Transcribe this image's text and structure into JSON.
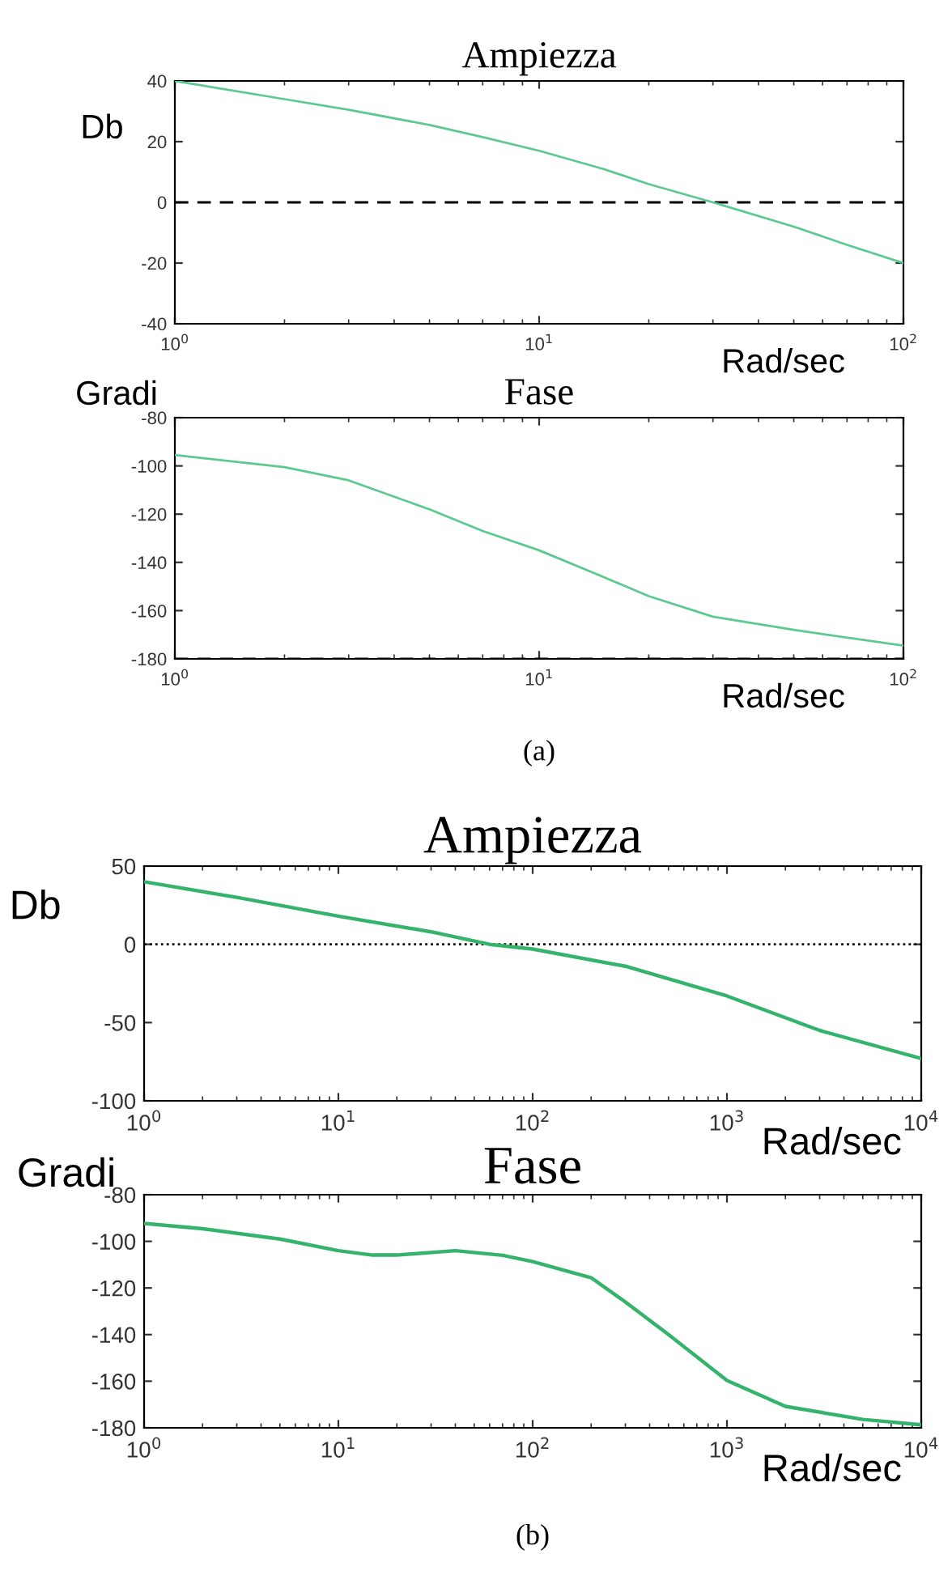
{
  "chart_data": [
    {
      "type": "line",
      "title": "Ampiezza",
      "ylabel": "Db",
      "xlabel": "Rad/sec",
      "log": "x",
      "grid": false,
      "legend": false,
      "line_style": "solid",
      "marker": "none",
      "x": [
        1,
        2,
        3,
        5,
        7,
        10,
        15,
        20,
        30,
        50,
        70,
        100
      ],
      "series": [
        {
          "color": "#5cc990",
          "values": [
            40,
            34,
            30.5,
            25.5,
            21.5,
            17,
            11,
            6,
            0,
            -8,
            -14,
            -20
          ]
        }
      ],
      "xlim": [
        1,
        100
      ],
      "xticks": [
        {
          "value": 1,
          "label": "10$^{0}$"
        },
        {
          "value": 10,
          "label": "10$^{1}$"
        },
        {
          "value": 100,
          "label": "10$^{2}$"
        }
      ],
      "ylim": [
        -40,
        40
      ],
      "yticks": [
        -40,
        -20,
        0,
        20,
        40
      ],
      "ref_lines": [
        {
          "axis": "y",
          "value": 0,
          "color": "#000000",
          "line_style": "dashed"
        }
      ]
    },
    {
      "type": "line",
      "title": "Fase",
      "ylabel": "Gradi",
      "xlabel": "Rad/sec",
      "log": "x",
      "grid": false,
      "legend": false,
      "line_style": "solid",
      "marker": "none",
      "x": [
        1,
        2,
        3,
        5,
        7,
        10,
        15,
        20,
        30,
        50,
        100
      ],
      "series": [
        {
          "color": "#5cc990",
          "values": [
            -95.5,
            -100.5,
            -106,
            -118,
            -127,
            -135,
            -146,
            -154,
            -162.5,
            -168,
            -174.5
          ]
        }
      ],
      "xlim": [
        1,
        100
      ],
      "xticks": [
        {
          "value": 1,
          "label": "10$^{0}$"
        },
        {
          "value": 10,
          "label": "10$^{1}$"
        },
        {
          "value": 100,
          "label": "10$^{2}$"
        }
      ],
      "ylim": [
        -180,
        -80
      ],
      "yticks": [
        -180,
        -160,
        -140,
        -120,
        -100,
        -80
      ],
      "ref_lines": [
        {
          "axis": "y",
          "value": -180,
          "color": "#000000",
          "line_style": "dashed"
        }
      ],
      "annotations": [
        "(a)"
      ]
    },
    {
      "type": "line",
      "title": "Ampiezza",
      "ylabel": "Db",
      "xlabel": "Rad/sec",
      "log": "x",
      "grid": false,
      "legend": false,
      "line_style": "solid",
      "marker": "none",
      "x": [
        1,
        3,
        10,
        30,
        60,
        100,
        300,
        1000,
        3000,
        10000
      ],
      "series": [
        {
          "color": "#33b36b",
          "values": [
            40,
            30,
            18,
            8,
            0,
            -3,
            -14,
            -33,
            -55,
            -73
          ]
        }
      ],
      "xlim": [
        1,
        10000
      ],
      "xticks": [
        {
          "value": 1,
          "label": "10$^{0}$"
        },
        {
          "value": 10,
          "label": "10$^{1}$"
        },
        {
          "value": 100,
          "label": "10$^{2}$"
        },
        {
          "value": 1000,
          "label": "10$^{3}$"
        },
        {
          "value": 10000,
          "label": "10$^{4}$"
        }
      ],
      "ylim": [
        -100,
        50
      ],
      "yticks": [
        -100,
        -50,
        0,
        50
      ],
      "ref_lines": [
        {
          "axis": "y",
          "value": 0,
          "color": "#000000",
          "line_style": "dotted"
        }
      ]
    },
    {
      "type": "line",
      "title": "Fase",
      "ylabel": "Gradi",
      "xlabel": "Rad/sec",
      "log": "x",
      "grid": false,
      "legend": false,
      "line_style": "solid",
      "marker": "none",
      "x": [
        1,
        2,
        5,
        10,
        15,
        20,
        40,
        70,
        100,
        200,
        300,
        500,
        1000,
        2000,
        5000,
        10000
      ],
      "series": [
        {
          "color": "#33b36b",
          "values": [
            -92.3,
            -94.6,
            -99,
            -104,
            -105.9,
            -105.9,
            -104,
            -106,
            -108.7,
            -115.6,
            -126,
            -140,
            -159.7,
            -170.8,
            -176.4,
            -178.7
          ]
        }
      ],
      "xlim": [
        1,
        10000
      ],
      "xticks": [
        {
          "value": 1,
          "label": "10$^{0}$"
        },
        {
          "value": 10,
          "label": "10$^{1}$"
        },
        {
          "value": 100,
          "label": "10$^{2}$"
        },
        {
          "value": 1000,
          "label": "10$^{3}$"
        },
        {
          "value": 10000,
          "label": "10$^{4}$"
        }
      ],
      "ylim": [
        -180,
        -80
      ],
      "yticks": [
        -180,
        -160,
        -140,
        -120,
        -100,
        -80
      ],
      "annotations": [
        "(b)"
      ]
    }
  ]
}
